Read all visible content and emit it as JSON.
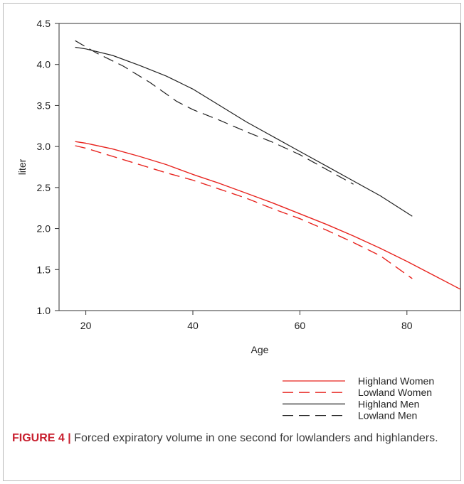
{
  "chart_data": {
    "type": "line",
    "xlabel": "Age",
    "ylabel": "liter",
    "xlim": [
      15,
      90
    ],
    "ylim": [
      1.0,
      4.5
    ],
    "x_ticks": [
      20,
      40,
      60,
      80
    ],
    "y_ticks": [
      "1.0",
      "1.5",
      "2.0",
      "2.5",
      "3.0",
      "3.5",
      "4.0",
      "4.5"
    ],
    "grid": false,
    "legend_position": "bottom-right",
    "series": [
      {
        "name": "Highland Women",
        "color": "#e8241f",
        "dash": "solid",
        "points": [
          [
            18,
            3.06
          ],
          [
            20,
            3.04
          ],
          [
            25,
            2.97
          ],
          [
            30,
            2.88
          ],
          [
            35,
            2.78
          ],
          [
            40,
            2.66
          ],
          [
            45,
            2.55
          ],
          [
            50,
            2.43
          ],
          [
            55,
            2.31
          ],
          [
            60,
            2.18
          ],
          [
            65,
            2.05
          ],
          [
            70,
            1.91
          ],
          [
            75,
            1.76
          ],
          [
            80,
            1.6
          ],
          [
            85,
            1.43
          ],
          [
            90,
            1.26
          ]
        ]
      },
      {
        "name": "Lowland Women",
        "color": "#e8241f",
        "dash": "dashed",
        "points": [
          [
            18,
            3.01
          ],
          [
            20,
            2.98
          ],
          [
            25,
            2.88
          ],
          [
            30,
            2.78
          ],
          [
            35,
            2.68
          ],
          [
            40,
            2.59
          ],
          [
            45,
            2.48
          ],
          [
            50,
            2.37
          ],
          [
            55,
            2.24
          ],
          [
            60,
            2.12
          ],
          [
            65,
            1.98
          ],
          [
            70,
            1.83
          ],
          [
            75,
            1.67
          ],
          [
            81,
            1.39
          ]
        ]
      },
      {
        "name": "Highland Men",
        "color": "#222222",
        "dash": "solid",
        "points": [
          [
            18,
            4.21
          ],
          [
            20,
            4.19
          ],
          [
            25,
            4.11
          ],
          [
            30,
            3.99
          ],
          [
            35,
            3.86
          ],
          [
            40,
            3.7
          ],
          [
            45,
            3.5
          ],
          [
            50,
            3.3
          ],
          [
            55,
            3.12
          ],
          [
            60,
            2.94
          ],
          [
            65,
            2.76
          ],
          [
            70,
            2.58
          ],
          [
            75,
            2.4
          ],
          [
            81,
            2.15
          ]
        ]
      },
      {
        "name": "Lowland Men",
        "color": "#222222",
        "dash": "dashed",
        "points": [
          [
            18,
            4.29
          ],
          [
            22,
            4.14
          ],
          [
            27,
            3.98
          ],
          [
            32,
            3.78
          ],
          [
            37,
            3.55
          ],
          [
            40,
            3.45
          ],
          [
            45,
            3.32
          ],
          [
            50,
            3.18
          ],
          [
            55,
            3.05
          ],
          [
            60,
            2.9
          ],
          [
            65,
            2.72
          ],
          [
            70,
            2.54
          ]
        ]
      }
    ]
  },
  "caption": {
    "label": "FIGURE 4 |",
    "text": " Forced expiratory volume in one second for lowlanders and highlanders."
  }
}
